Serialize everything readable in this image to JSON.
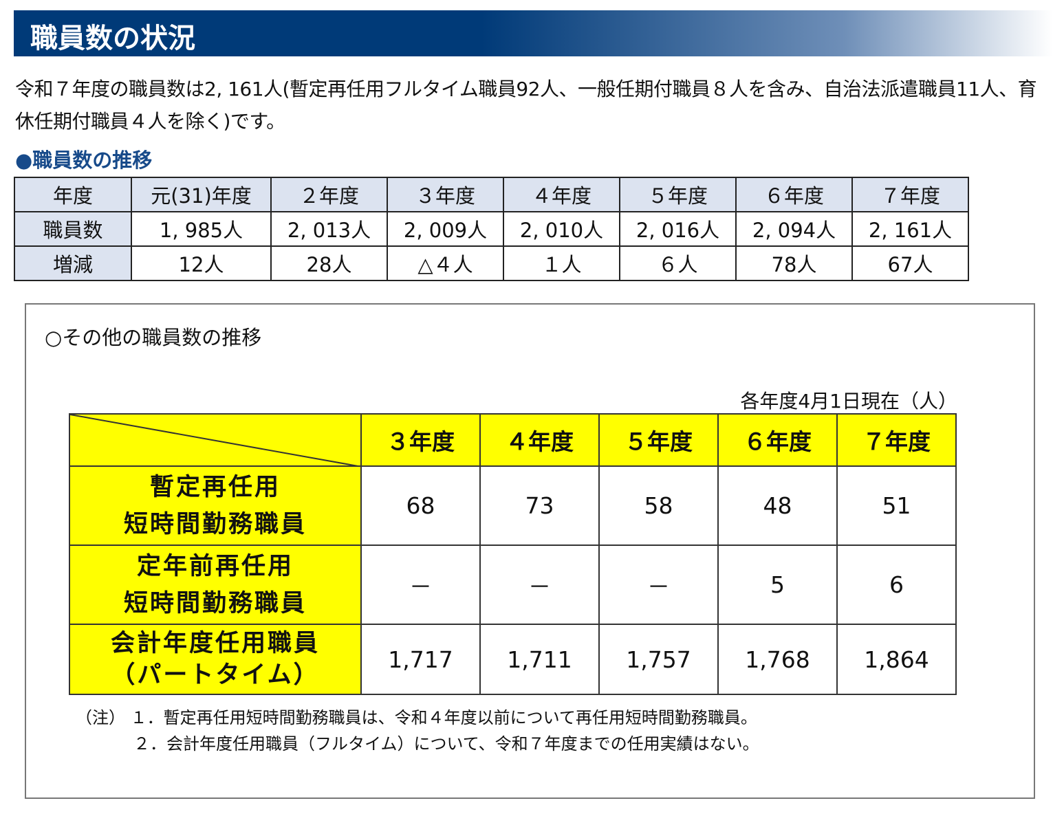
{
  "title": "職員数の状況",
  "paragraph": "令和７年度の職員数は2, 161人(暫定再任用フルタイム職員92人、一般任期付職員８人を含み、自治法派遣職員11人、育休任期付職員４人を除く)です。",
  "section1": {
    "title": "●職員数の推移",
    "headers": [
      "年度",
      "元(31)年度",
      "２年度",
      "３年度",
      "４年度",
      "５年度",
      "６年度",
      "７年度"
    ],
    "rows": [
      [
        "職員数",
        "1, 985人",
        "2, 013人",
        "2, 009人",
        "2, 010人",
        "2, 016人",
        "2, 094人",
        "2, 161人"
      ],
      [
        "増減",
        "12人",
        "28人",
        "△４人",
        "１人",
        "６人",
        "78人",
        "67人"
      ]
    ]
  },
  "section2": {
    "title": "○その他の職員数の推移",
    "unit": "各年度4月1日現在（人）",
    "headers": [
      "３年度",
      "４年度",
      "５年度",
      "６年度",
      "７年度"
    ],
    "rows": [
      {
        "label1": "暫定再任用",
        "label2": "短時間勤務職員",
        "values": [
          "68",
          "73",
          "58",
          "48",
          "51"
        ]
      },
      {
        "label1": "定年前再任用",
        "label2": "短時間勤務職員",
        "values": [
          "－",
          "－",
          "－",
          "5",
          "6"
        ]
      },
      {
        "label1": "会計年度任用職員",
        "label2": "（パートタイム）",
        "values": [
          "1,717",
          "1,711",
          "1,757",
          "1,768",
          "1,864"
        ]
      }
    ],
    "notes": [
      "（注） １．暫定再任用短時間勤務職員は、令和４年度以前について再任用短時間勤務職員。",
      "２．会計年度任用職員（フルタイム）について、令和７年度までの任用実績はない。"
    ]
  }
}
